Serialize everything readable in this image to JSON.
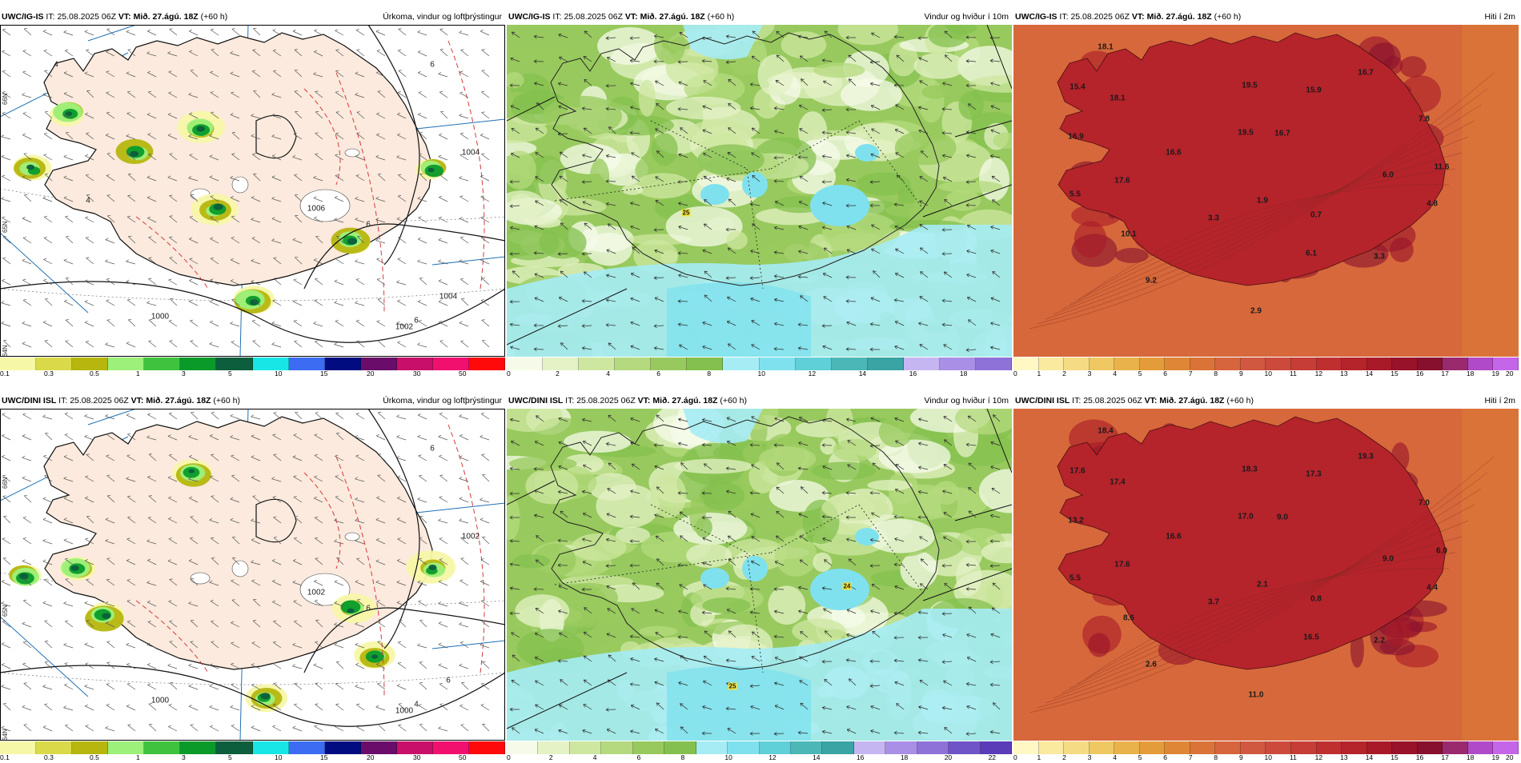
{
  "panels": [
    {
      "id": "r1c1",
      "model": "UWC/IG-IS",
      "it_label": "IT:",
      "issue_time": "25.08.2025 06Z",
      "vt_label": "VT:",
      "valid_time": "Mið. 27.ágú. 18Z",
      "lead": "(+60 h)",
      "field": "Úrkoma, vindur og loftþrýstingur",
      "kind": "precip",
      "colors": [
        "#f7f7a8",
        "#d9d94a",
        "#b6b60f",
        "#9df07a",
        "#3fc33f",
        "#0a9a2a",
        "#0c5e3d",
        "#18e6e6",
        "#3b6cf2",
        "#000c80",
        "#6a0d6a",
        "#c8106a",
        "#f2106f",
        "#ff0a0a"
      ],
      "ticks": [
        "0.1",
        "0.3",
        "0.5",
        "1",
        "3",
        "5",
        "10",
        "15",
        "20",
        "30",
        "50"
      ],
      "map_labels": [
        "1000",
        "1002",
        "1004",
        "1006",
        "1004",
        "6",
        "6",
        "6",
        "6",
        "4",
        "4"
      ],
      "grid_labels": [
        "66N",
        "65N",
        "64N"
      ]
    },
    {
      "id": "r1c2",
      "model": "UWC/IG-IS",
      "it_label": "IT:",
      "issue_time": "25.08.2025 06Z",
      "vt_label": "VT:",
      "valid_time": "Mið. 27.ágú. 18Z",
      "lead": "(+60 h)",
      "field": "Vindur og hviður í 10m",
      "kind": "wind",
      "colors": [
        "#f6fbe9",
        "#e4f2c6",
        "#cde7a0",
        "#b4d97e",
        "#98c95e",
        "#84c04f",
        "#a5ecf5",
        "#7fe1ee",
        "#5fcfd8",
        "#4bb7b7",
        "#3aa3a3",
        "#c5b6f2",
        "#a98fe6",
        "#8f72d8"
      ],
      "ticks": [
        "0",
        "2",
        "4",
        "6",
        "8",
        "10",
        "12",
        "14",
        "16",
        "18"
      ],
      "map_labels": [
        "25"
      ]
    },
    {
      "id": "r1c3",
      "model": "UWC/IG-IS",
      "it_label": "IT:",
      "issue_time": "25.08.2025 06Z",
      "vt_label": "VT:",
      "valid_time": "Mið. 27.ágú. 18Z",
      "lead": "(+60 h)",
      "field": "Hiti í 2m",
      "kind": "temp",
      "colors": [
        "#fff7c4",
        "#faeaa0",
        "#f5db84",
        "#efc864",
        "#e9b24a",
        "#e49c3a",
        "#df8636",
        "#da7338",
        "#d6643c",
        "#d15840",
        "#cc4a3c",
        "#c63c36",
        "#bf2f30",
        "#b5232b",
        "#a81a28",
        "#98122a",
        "#87102e",
        "#9a2a6e",
        "#b04ac8",
        "#c565e8"
      ],
      "ticks": [
        "0",
        "1",
        "2",
        "3",
        "4",
        "5",
        "6",
        "7",
        "8",
        "9",
        "10",
        "11",
        "12",
        "13",
        "14",
        "15",
        "16",
        "17",
        "18",
        "19",
        "20"
      ],
      "map_labels": [
        "18.1",
        "15.4",
        "18.1",
        "16.9",
        "5.5",
        "17.6",
        "16.6",
        "19.5",
        "19.5",
        "16.7",
        "15.9",
        "16.7",
        "7.8",
        "11.6",
        "6.0",
        "4.8",
        "3.3",
        "1.9",
        "0.7",
        "10.1",
        "6.1",
        "3.3",
        "9.2",
        "2.9"
      ]
    },
    {
      "id": "r2c1",
      "model": "UWC/DINI ISL",
      "it_label": "IT:",
      "issue_time": "25.08.2025 06Z",
      "vt_label": "VT:",
      "valid_time": "Mið. 27.ágú. 18Z",
      "lead": "(+60 h)",
      "field": "Úrkoma, vindur og loftþrýstingur",
      "kind": "precip",
      "colors": [
        "#f7f7a8",
        "#d9d94a",
        "#b6b60f",
        "#9df07a",
        "#3fc33f",
        "#0a9a2a",
        "#0c5e3d",
        "#18e6e6",
        "#3b6cf2",
        "#000c80",
        "#6a0d6a",
        "#c8106a",
        "#f2106f",
        "#ff0a0a"
      ],
      "ticks": [
        "0.1",
        "0.3",
        "0.5",
        "1",
        "3",
        "5",
        "10",
        "15",
        "20",
        "30",
        "50"
      ],
      "map_labels": [
        "1000",
        "1000",
        "1002",
        "1002",
        "6",
        "6",
        "6",
        "4"
      ],
      "grid_labels": [
        "66N",
        "65N",
        "64N"
      ]
    },
    {
      "id": "r2c2",
      "model": "UWC/DINI ISL",
      "it_label": "IT:",
      "issue_time": "25.08.2025 06Z",
      "vt_label": "VT:",
      "valid_time": "Mið. 27.ágú. 18Z",
      "lead": "(+60 h)",
      "field": "Vindur og hviður í 10m",
      "kind": "wind",
      "colors": [
        "#f6fbe9",
        "#e4f2c6",
        "#cde7a0",
        "#b4d97e",
        "#98c95e",
        "#84c04f",
        "#a5ecf5",
        "#7fe1ee",
        "#5fcfd8",
        "#4bb7b7",
        "#3aa3a3",
        "#c5b6f2",
        "#a98fe6",
        "#8f72d8",
        "#6f54c8",
        "#5a3bb8"
      ],
      "ticks": [
        "0",
        "2",
        "4",
        "6",
        "8",
        "10",
        "12",
        "14",
        "16",
        "18",
        "20",
        "22"
      ],
      "map_labels": [
        "25",
        "24"
      ]
    },
    {
      "id": "r2c3",
      "model": "UWC/DINI ISL",
      "it_label": "IT:",
      "issue_time": "25.08.2025 06Z",
      "vt_label": "VT:",
      "valid_time": "Mið. 27.ágú. 18Z",
      "lead": "(+60 h)",
      "field": "Hiti í 2m",
      "kind": "temp",
      "colors": [
        "#fff7c4",
        "#faeaa0",
        "#f5db84",
        "#efc864",
        "#e9b24a",
        "#e49c3a",
        "#df8636",
        "#da7338",
        "#d6643c",
        "#d15840",
        "#cc4a3c",
        "#c63c36",
        "#bf2f30",
        "#b5232b",
        "#a81a28",
        "#98122a",
        "#87102e",
        "#9a2a6e",
        "#b04ac8",
        "#c565e8"
      ],
      "ticks": [
        "0",
        "1",
        "2",
        "3",
        "4",
        "5",
        "6",
        "7",
        "8",
        "9",
        "10",
        "11",
        "12",
        "13",
        "14",
        "15",
        "16",
        "17",
        "18",
        "19",
        "20"
      ],
      "map_labels": [
        "18.4",
        "17.6",
        "17.4",
        "13.2",
        "5.5",
        "17.6",
        "16.6",
        "18.3",
        "17.0",
        "9.0",
        "17.3",
        "19.3",
        "7.0",
        "6.0",
        "9.0",
        "4.4",
        "3.7",
        "2.1",
        "0.8",
        "8.6",
        "16.5",
        "2.2",
        "2.6",
        "11.0"
      ]
    }
  ]
}
